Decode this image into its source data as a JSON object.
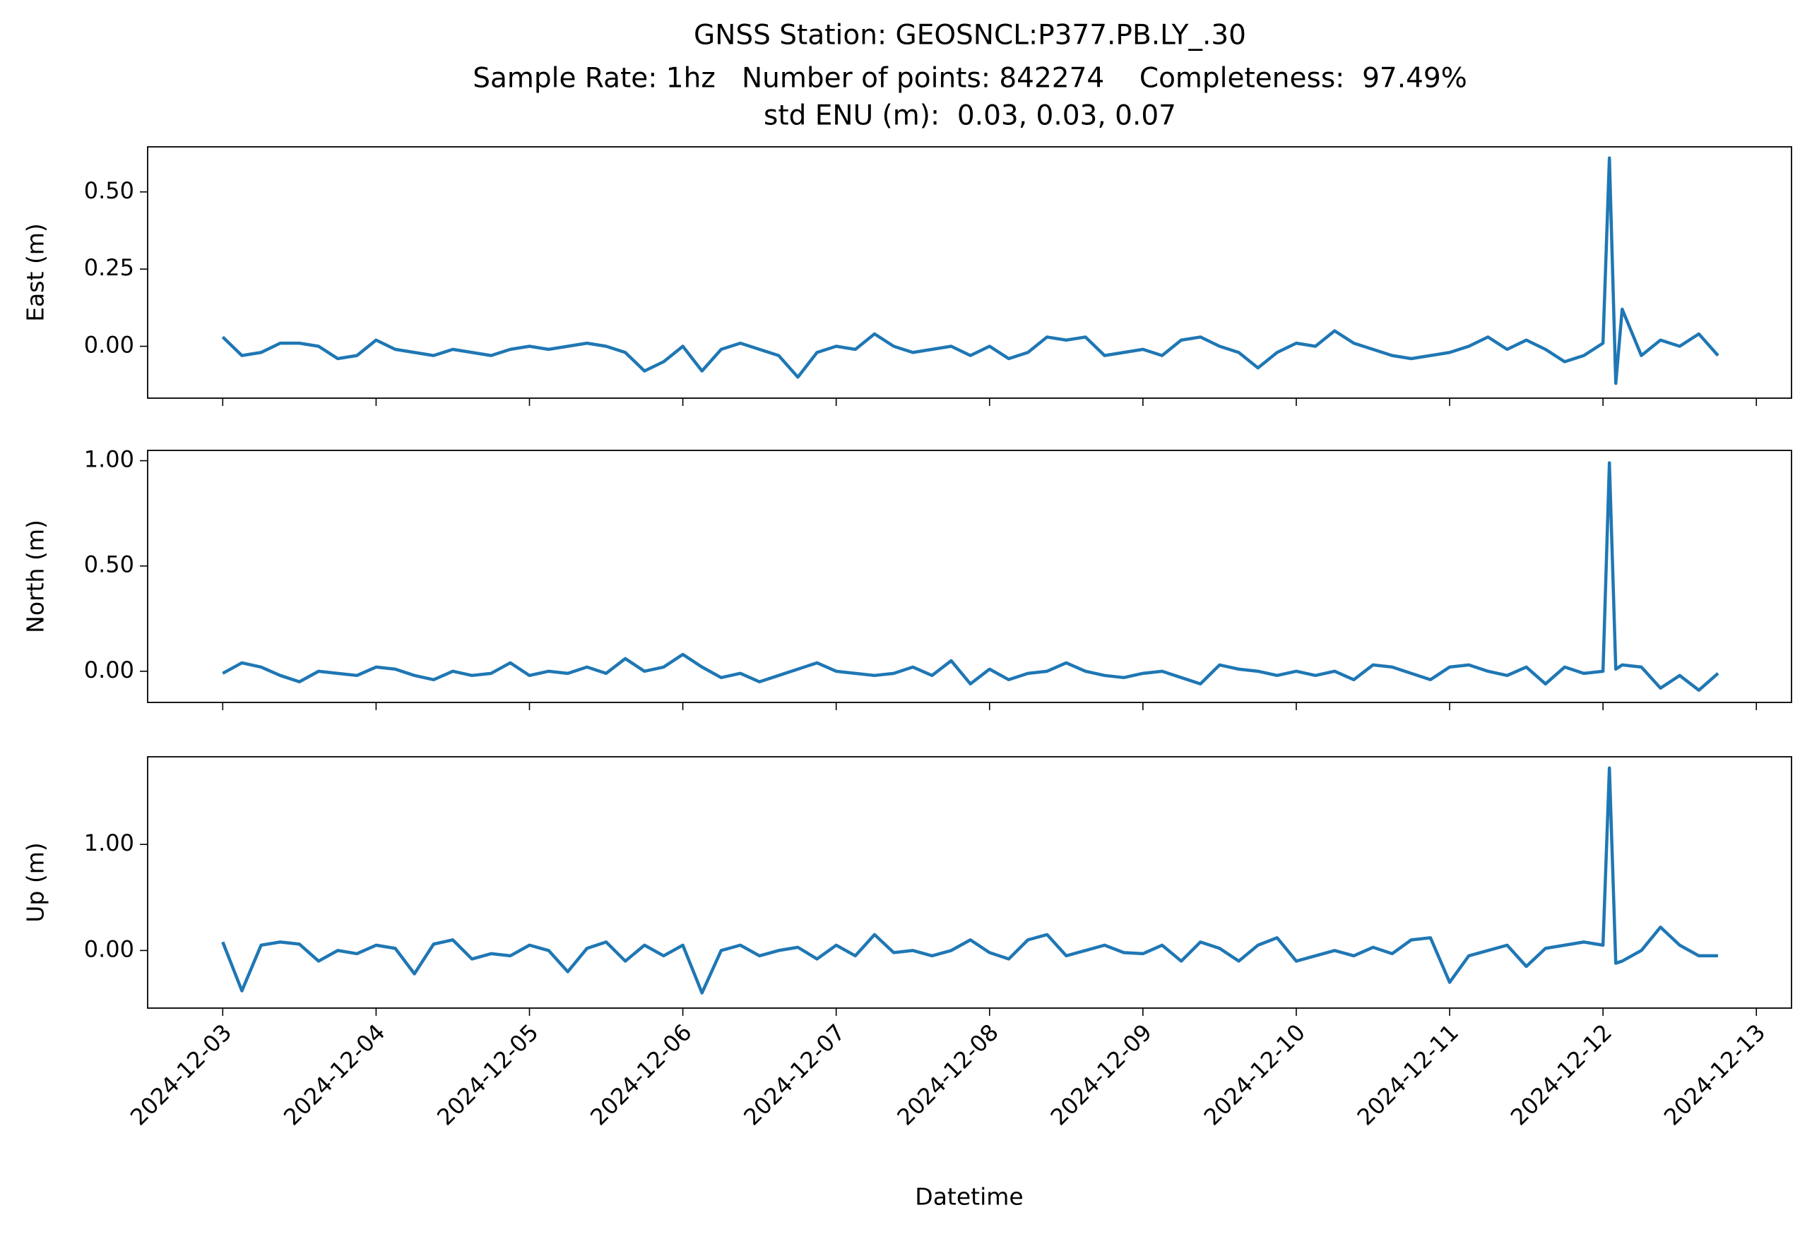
{
  "title_lines": [
    "GNSS Station: GEOSNCL:P377.PB.LY_.30",
    "Sample Rate: 1hz   Number of points: 842274    Completeness:  97.49%",
    "std ENU (m):  0.03, 0.03, 0.07"
  ],
  "xlabel": "Datetime",
  "chart_data": [
    {
      "type": "line",
      "ylabel": "East (m)",
      "color": "#1f77b4",
      "x": [
        "2024-12-03T00:00",
        "2024-12-03T03:00",
        "2024-12-03T06:00",
        "2024-12-03T09:00",
        "2024-12-03T12:00",
        "2024-12-03T15:00",
        "2024-12-03T18:00",
        "2024-12-03T21:00",
        "2024-12-04T00:00",
        "2024-12-04T03:00",
        "2024-12-04T06:00",
        "2024-12-04T09:00",
        "2024-12-04T12:00",
        "2024-12-04T15:00",
        "2024-12-04T18:00",
        "2024-12-04T21:00",
        "2024-12-05T00:00",
        "2024-12-05T03:00",
        "2024-12-05T06:00",
        "2024-12-05T09:00",
        "2024-12-05T12:00",
        "2024-12-05T15:00",
        "2024-12-05T18:00",
        "2024-12-05T21:00",
        "2024-12-06T00:00",
        "2024-12-06T03:00",
        "2024-12-06T06:00",
        "2024-12-06T09:00",
        "2024-12-06T12:00",
        "2024-12-06T15:00",
        "2024-12-06T18:00",
        "2024-12-06T21:00",
        "2024-12-07T00:00",
        "2024-12-07T03:00",
        "2024-12-07T06:00",
        "2024-12-07T09:00",
        "2024-12-07T12:00",
        "2024-12-07T15:00",
        "2024-12-07T18:00",
        "2024-12-07T21:00",
        "2024-12-08T00:00",
        "2024-12-08T03:00",
        "2024-12-08T06:00",
        "2024-12-08T09:00",
        "2024-12-08T12:00",
        "2024-12-08T15:00",
        "2024-12-08T18:00",
        "2024-12-08T21:00",
        "2024-12-09T00:00",
        "2024-12-09T03:00",
        "2024-12-09T06:00",
        "2024-12-09T09:00",
        "2024-12-09T12:00",
        "2024-12-09T15:00",
        "2024-12-09T18:00",
        "2024-12-09T21:00",
        "2024-12-10T00:00",
        "2024-12-10T03:00",
        "2024-12-10T06:00",
        "2024-12-10T09:00",
        "2024-12-10T12:00",
        "2024-12-10T15:00",
        "2024-12-10T18:00",
        "2024-12-10T21:00",
        "2024-12-11T00:00",
        "2024-12-11T03:00",
        "2024-12-11T06:00",
        "2024-12-11T09:00",
        "2024-12-11T12:00",
        "2024-12-11T15:00",
        "2024-12-11T18:00",
        "2024-12-11T21:00",
        "2024-12-12T00:00",
        "2024-12-12T01:00",
        "2024-12-12T02:00",
        "2024-12-12T03:00",
        "2024-12-12T06:00",
        "2024-12-12T09:00",
        "2024-12-12T12:00",
        "2024-12-12T15:00",
        "2024-12-12T18:00"
      ],
      "values": [
        0.03,
        -0.03,
        -0.02,
        0.01,
        0.01,
        0.0,
        -0.04,
        -0.03,
        0.02,
        -0.01,
        -0.02,
        -0.03,
        -0.01,
        -0.02,
        -0.03,
        -0.01,
        0.0,
        -0.01,
        0.0,
        0.01,
        0.0,
        -0.02,
        -0.08,
        -0.05,
        0.0,
        -0.08,
        -0.01,
        0.01,
        -0.01,
        -0.03,
        -0.1,
        -0.02,
        0.0,
        -0.01,
        0.04,
        0.0,
        -0.02,
        -0.01,
        0.0,
        -0.03,
        0.0,
        -0.04,
        -0.02,
        0.03,
        0.02,
        0.03,
        -0.03,
        -0.02,
        -0.01,
        -0.03,
        0.02,
        0.03,
        0.0,
        -0.02,
        -0.07,
        -0.02,
        0.01,
        0.0,
        0.05,
        0.01,
        -0.01,
        -0.03,
        -0.04,
        -0.03,
        -0.02,
        0.0,
        0.03,
        -0.01,
        0.02,
        -0.01,
        -0.05,
        -0.03,
        0.01,
        0.61,
        -0.12,
        0.12,
        -0.03,
        0.02,
        0.0,
        0.04,
        -0.03
      ],
      "xlim": [
        "2024-12-02T12:15",
        "2024-12-13T05:30"
      ],
      "xticks": [
        "2024-12-03",
        "2024-12-04",
        "2024-12-05",
        "2024-12-06",
        "2024-12-07",
        "2024-12-08",
        "2024-12-09",
        "2024-12-10",
        "2024-12-11",
        "2024-12-12",
        "2024-12-13"
      ],
      "ylim": [
        -0.168,
        0.646
      ],
      "yticks": [
        {
          "value": 0,
          "label": "0.00"
        },
        {
          "value": 0.25,
          "label": "0.25"
        },
        {
          "value": 0.5,
          "label": "0.50"
        }
      ]
    },
    {
      "type": "line",
      "ylabel": "North (m)",
      "color": "#1f77b4",
      "x": [
        "2024-12-03T00:00",
        "2024-12-03T03:00",
        "2024-12-03T06:00",
        "2024-12-03T09:00",
        "2024-12-03T12:00",
        "2024-12-03T15:00",
        "2024-12-03T18:00",
        "2024-12-03T21:00",
        "2024-12-04T00:00",
        "2024-12-04T03:00",
        "2024-12-04T06:00",
        "2024-12-04T09:00",
        "2024-12-04T12:00",
        "2024-12-04T15:00",
        "2024-12-04T18:00",
        "2024-12-04T21:00",
        "2024-12-05T00:00",
        "2024-12-05T03:00",
        "2024-12-05T06:00",
        "2024-12-05T09:00",
        "2024-12-05T12:00",
        "2024-12-05T15:00",
        "2024-12-05T18:00",
        "2024-12-05T21:00",
        "2024-12-06T00:00",
        "2024-12-06T03:00",
        "2024-12-06T06:00",
        "2024-12-06T09:00",
        "2024-12-06T12:00",
        "2024-12-06T15:00",
        "2024-12-06T18:00",
        "2024-12-06T21:00",
        "2024-12-07T00:00",
        "2024-12-07T03:00",
        "2024-12-07T06:00",
        "2024-12-07T09:00",
        "2024-12-07T12:00",
        "2024-12-07T15:00",
        "2024-12-07T18:00",
        "2024-12-07T21:00",
        "2024-12-08T00:00",
        "2024-12-08T03:00",
        "2024-12-08T06:00",
        "2024-12-08T09:00",
        "2024-12-08T12:00",
        "2024-12-08T15:00",
        "2024-12-08T18:00",
        "2024-12-08T21:00",
        "2024-12-09T00:00",
        "2024-12-09T03:00",
        "2024-12-09T06:00",
        "2024-12-09T09:00",
        "2024-12-09T12:00",
        "2024-12-09T15:00",
        "2024-12-09T18:00",
        "2024-12-09T21:00",
        "2024-12-10T00:00",
        "2024-12-10T03:00",
        "2024-12-10T06:00",
        "2024-12-10T09:00",
        "2024-12-10T12:00",
        "2024-12-10T15:00",
        "2024-12-10T18:00",
        "2024-12-10T21:00",
        "2024-12-11T00:00",
        "2024-12-11T03:00",
        "2024-12-11T06:00",
        "2024-12-11T09:00",
        "2024-12-11T12:00",
        "2024-12-11T15:00",
        "2024-12-11T18:00",
        "2024-12-11T21:00",
        "2024-12-12T00:00",
        "2024-12-12T01:00",
        "2024-12-12T02:00",
        "2024-12-12T03:00",
        "2024-12-12T06:00",
        "2024-12-12T09:00",
        "2024-12-12T12:00",
        "2024-12-12T15:00",
        "2024-12-12T18:00"
      ],
      "values": [
        -0.01,
        0.04,
        0.02,
        -0.02,
        -0.05,
        0.0,
        -0.01,
        -0.02,
        0.02,
        0.01,
        -0.02,
        -0.04,
        0.0,
        -0.02,
        -0.01,
        0.04,
        -0.02,
        0.0,
        -0.01,
        0.02,
        -0.01,
        0.06,
        0.0,
        0.02,
        0.08,
        0.02,
        -0.03,
        -0.01,
        -0.05,
        -0.02,
        0.01,
        0.04,
        0.0,
        -0.01,
        -0.02,
        -0.01,
        0.02,
        -0.02,
        0.05,
        -0.06,
        0.01,
        -0.04,
        -0.01,
        0.0,
        0.04,
        0.0,
        -0.02,
        -0.03,
        -0.01,
        0.0,
        -0.03,
        -0.06,
        0.03,
        0.01,
        0.0,
        -0.02,
        0.0,
        -0.02,
        0.0,
        -0.04,
        0.03,
        0.02,
        -0.01,
        -0.04,
        0.02,
        0.03,
        0.0,
        -0.02,
        0.02,
        -0.06,
        0.02,
        -0.01,
        0.0,
        0.99,
        0.01,
        0.03,
        0.02,
        -0.08,
        -0.02,
        -0.09,
        -0.01
      ],
      "xlim": [
        "2024-12-02T12:15",
        "2024-12-13T05:30"
      ],
      "xticks": [
        "2024-12-03",
        "2024-12-04",
        "2024-12-05",
        "2024-12-06",
        "2024-12-07",
        "2024-12-08",
        "2024-12-09",
        "2024-12-10",
        "2024-12-11",
        "2024-12-12",
        "2024-12-13"
      ],
      "ylim": [
        -0.148,
        1.049
      ],
      "yticks": [
        {
          "value": 0,
          "label": "0.00"
        },
        {
          "value": 0.5,
          "label": "0.50"
        },
        {
          "value": 1,
          "label": "1.00"
        }
      ]
    },
    {
      "type": "line",
      "ylabel": "Up (m)",
      "color": "#1f77b4",
      "x": [
        "2024-12-03T00:00",
        "2024-12-03T03:00",
        "2024-12-03T06:00",
        "2024-12-03T09:00",
        "2024-12-03T12:00",
        "2024-12-03T15:00",
        "2024-12-03T18:00",
        "2024-12-03T21:00",
        "2024-12-04T00:00",
        "2024-12-04T03:00",
        "2024-12-04T06:00",
        "2024-12-04T09:00",
        "2024-12-04T12:00",
        "2024-12-04T15:00",
        "2024-12-04T18:00",
        "2024-12-04T21:00",
        "2024-12-05T00:00",
        "2024-12-05T03:00",
        "2024-12-05T06:00",
        "2024-12-05T09:00",
        "2024-12-05T12:00",
        "2024-12-05T15:00",
        "2024-12-05T18:00",
        "2024-12-05T21:00",
        "2024-12-06T00:00",
        "2024-12-06T03:00",
        "2024-12-06T06:00",
        "2024-12-06T09:00",
        "2024-12-06T12:00",
        "2024-12-06T15:00",
        "2024-12-06T18:00",
        "2024-12-06T21:00",
        "2024-12-07T00:00",
        "2024-12-07T03:00",
        "2024-12-07T06:00",
        "2024-12-07T09:00",
        "2024-12-07T12:00",
        "2024-12-07T15:00",
        "2024-12-07T18:00",
        "2024-12-07T21:00",
        "2024-12-08T00:00",
        "2024-12-08T03:00",
        "2024-12-08T06:00",
        "2024-12-08T09:00",
        "2024-12-08T12:00",
        "2024-12-08T15:00",
        "2024-12-08T18:00",
        "2024-12-08T21:00",
        "2024-12-09T00:00",
        "2024-12-09T03:00",
        "2024-12-09T06:00",
        "2024-12-09T09:00",
        "2024-12-09T12:00",
        "2024-12-09T15:00",
        "2024-12-09T18:00",
        "2024-12-09T21:00",
        "2024-12-10T00:00",
        "2024-12-10T03:00",
        "2024-12-10T06:00",
        "2024-12-10T09:00",
        "2024-12-10T12:00",
        "2024-12-10T15:00",
        "2024-12-10T18:00",
        "2024-12-10T21:00",
        "2024-12-11T00:00",
        "2024-12-11T03:00",
        "2024-12-11T06:00",
        "2024-12-11T09:00",
        "2024-12-11T12:00",
        "2024-12-11T15:00",
        "2024-12-11T18:00",
        "2024-12-11T21:00",
        "2024-12-12T00:00",
        "2024-12-12T01:00",
        "2024-12-12T02:00",
        "2024-12-12T03:00",
        "2024-12-12T06:00",
        "2024-12-12T09:00",
        "2024-12-12T12:00",
        "2024-12-12T15:00",
        "2024-12-12T18:00"
      ],
      "values": [
        0.08,
        -0.38,
        0.05,
        0.08,
        0.06,
        -0.1,
        0.0,
        -0.03,
        0.05,
        0.02,
        -0.22,
        0.06,
        0.1,
        -0.08,
        -0.03,
        -0.05,
        0.05,
        0.0,
        -0.2,
        0.02,
        0.08,
        -0.1,
        0.05,
        -0.05,
        0.05,
        -0.4,
        0.0,
        0.05,
        -0.05,
        0.0,
        0.03,
        -0.08,
        0.05,
        -0.05,
        0.15,
        -0.02,
        0.0,
        -0.05,
        0.0,
        0.1,
        -0.02,
        -0.08,
        0.1,
        0.15,
        -0.05,
        0.0,
        0.05,
        -0.02,
        -0.03,
        0.05,
        -0.1,
        0.08,
        0.02,
        -0.1,
        0.05,
        0.12,
        -0.1,
        -0.05,
        0.0,
        -0.05,
        0.03,
        -0.03,
        0.1,
        0.12,
        -0.3,
        -0.05,
        0.0,
        0.05,
        -0.15,
        0.02,
        0.05,
        0.08,
        0.05,
        1.72,
        -0.12,
        -0.1,
        0.0,
        0.22,
        0.05,
        -0.05,
        -0.05
      ],
      "xlim": [
        "2024-12-02T12:15",
        "2024-12-13T05:30"
      ],
      "xticks": [
        "2024-12-03",
        "2024-12-04",
        "2024-12-05",
        "2024-12-06",
        "2024-12-07",
        "2024-12-08",
        "2024-12-09",
        "2024-12-10",
        "2024-12-11",
        "2024-12-12",
        "2024-12-13"
      ],
      "ylim": [
        -0.543,
        1.826
      ],
      "yticks": [
        {
          "value": 0,
          "label": "0.00"
        },
        {
          "value": 1,
          "label": "1.00"
        }
      ]
    }
  ]
}
